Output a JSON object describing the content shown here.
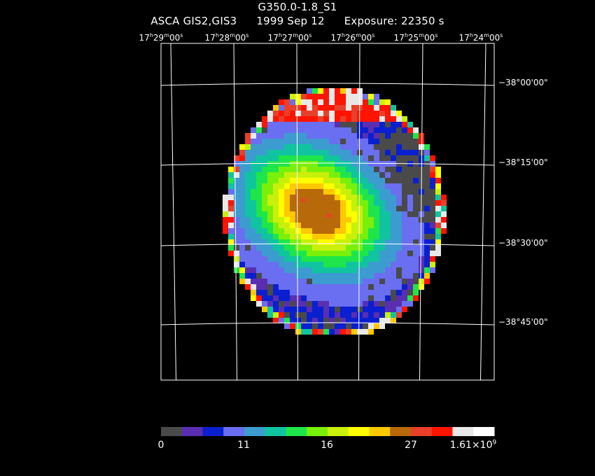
{
  "header": {
    "object": "G350.0-1.8_S1",
    "instrument": "ASCA GIS2,GIS3",
    "date": "1999 Sep 12",
    "exposure": "Exposure: 22350 s"
  },
  "ra_axis": [
    {
      "h": "17",
      "m": "29",
      "s": "00"
    },
    {
      "h": "17",
      "m": "28",
      "s": "00"
    },
    {
      "h": "17",
      "m": "27",
      "s": "00"
    },
    {
      "h": "17",
      "m": "26",
      "s": "00"
    },
    {
      "h": "17",
      "m": "25",
      "s": "00"
    },
    {
      "h": "17",
      "m": "24",
      "s": "00"
    }
  ],
  "dec_axis": [
    "−38°00'00\"",
    "−38°15'00\"",
    "−38°30'00\"",
    "−38°45'00\""
  ],
  "colorbar": {
    "colors": [
      "#4a4a4a",
      "#5a2eb0",
      "#0a1fcf",
      "#6a6ef0",
      "#3c9ccf",
      "#10c4a0",
      "#1ee64a",
      "#7af00a",
      "#c8f00a",
      "#ffff00",
      "#ffc800",
      "#b8690a",
      "#e8402a",
      "#ff1400",
      "#e8e8e8",
      "#ffffff"
    ],
    "labels": {
      "min": "0",
      "l1": "11",
      "l2": "16",
      "l3": "27",
      "max_base": "1.61×10",
      "max_exp": "9"
    }
  }
}
